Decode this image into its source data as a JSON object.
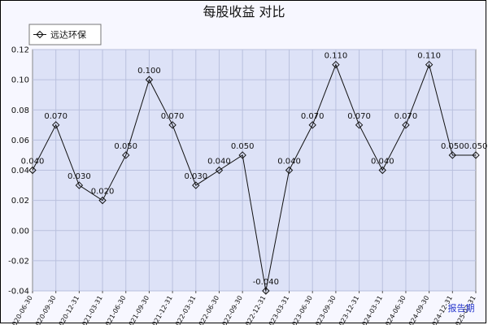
{
  "chart_data": {
    "type": "line",
    "title": "每股收益 对比",
    "x_unit_label": "报告期",
    "legend": {
      "placement": "top-left",
      "entries": [
        "远达环保"
      ]
    },
    "ylim": [
      -0.04,
      0.12
    ],
    "y_ticks": [
      "0.12",
      "0.10",
      "0.08",
      "0.06",
      "0.04",
      "0.02",
      "0.00",
      "-0.02",
      "-0.04"
    ],
    "grid": true,
    "categories": [
      "2020-06-30",
      "2020-09-30",
      "2020-12-31",
      "2021-03-31",
      "2021-06-30",
      "2021-09-30",
      "2021-12-31",
      "2022-03-31",
      "2022-06-30",
      "2022-09-30",
      "2022-12-31",
      "2023-03-31",
      "2023-06-30",
      "2023-09-30",
      "2023-12-31",
      "2024-03-31",
      "2024-06-30",
      "2024-09-30",
      "2024-12-31",
      "2025-03-31"
    ],
    "series": [
      {
        "name": "远达环保",
        "values": [
          0.04,
          0.07,
          0.03,
          0.02,
          0.05,
          0.1,
          0.07,
          0.03,
          0.04,
          0.05,
          -0.04,
          0.04,
          0.07,
          0.11,
          0.07,
          0.04,
          0.07,
          0.11,
          0.05,
          0.05
        ],
        "labels": [
          "0.040",
          "0.070",
          "0.030",
          "0.020",
          "0.050",
          "0.100",
          "0.070",
          "0.030",
          "0.040",
          "0.050",
          "-0.040",
          "0.040",
          "0.070",
          "0.110",
          "0.070",
          "0.040",
          "0.070",
          "0.110",
          "0.050",
          "0.050"
        ]
      }
    ]
  }
}
